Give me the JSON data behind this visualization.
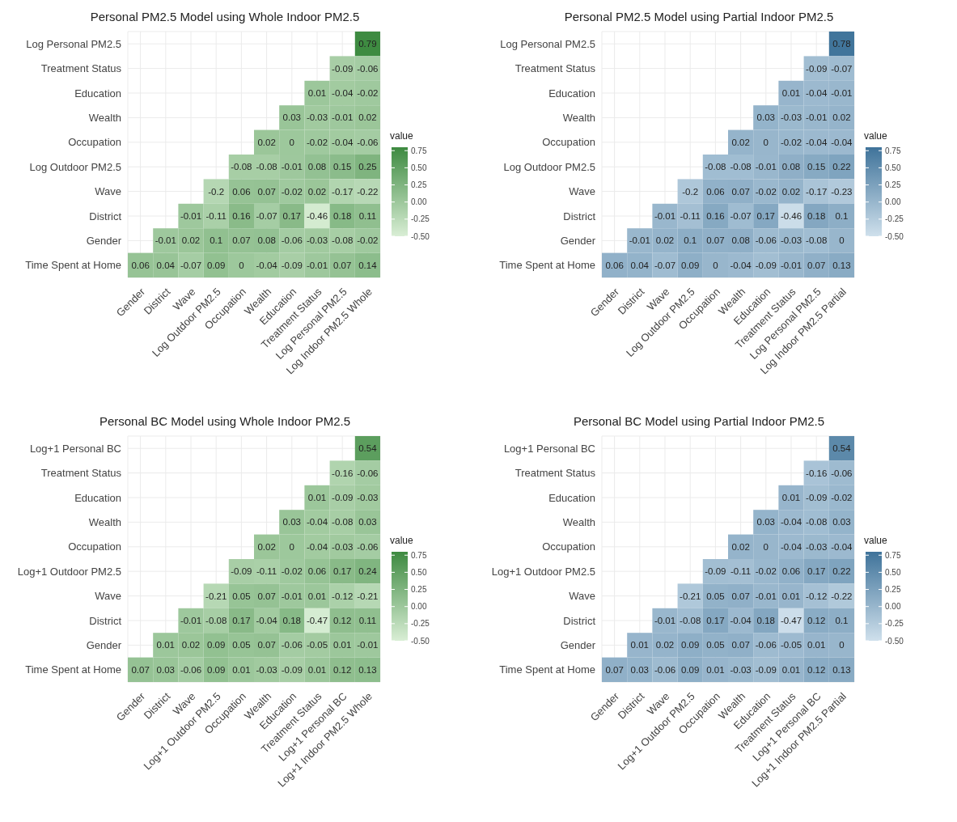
{
  "chart_data": [
    {
      "type": "heatmap",
      "title": "Personal PM2.5 Model using Whole Indoor PM2.5",
      "categories": [
        "Gender",
        "District",
        "Wave",
        "Log Outdoor PM2.5",
        "Occupation",
        "Wealth",
        "Education",
        "Treatment Status",
        "Log Personal PM2.5",
        "Log Indoor PM2.5 Whole"
      ],
      "y_categories": [
        "Log Personal PM2.5",
        "Treatment Status",
        "Education",
        "Wealth",
        "Occupation",
        "Log Outdoor PM2.5",
        "Wave",
        "District",
        "Gender",
        "Time Spent at Home"
      ],
      "cells": [
        [
          null,
          null,
          null,
          null,
          null,
          null,
          null,
          null,
          null,
          0.79
        ],
        [
          null,
          null,
          null,
          null,
          null,
          null,
          null,
          null,
          -0.09,
          -0.06
        ],
        [
          null,
          null,
          null,
          null,
          null,
          null,
          null,
          0.01,
          -0.04,
          -0.02
        ],
        [
          null,
          null,
          null,
          null,
          null,
          null,
          0.03,
          -0.03,
          -0.01,
          0.02
        ],
        [
          null,
          null,
          null,
          null,
          null,
          0.02,
          0,
          -0.02,
          -0.04,
          -0.06
        ],
        [
          null,
          null,
          null,
          null,
          -0.08,
          -0.08,
          -0.01,
          0.08,
          0.15,
          0.25
        ],
        [
          null,
          null,
          null,
          -0.2,
          0.06,
          0.07,
          -0.02,
          0.02,
          -0.17,
          -0.22
        ],
        [
          null,
          null,
          -0.01,
          -0.11,
          0.16,
          -0.07,
          0.17,
          -0.46,
          0.18,
          0.11
        ],
        [
          null,
          -0.01,
          0.02,
          0.1,
          0.07,
          0.08,
          -0.06,
          -0.03,
          -0.08,
          -0.02
        ],
        [
          0.06,
          0.04,
          -0.07,
          0.09,
          0,
          -0.04,
          -0.09,
          -0.01,
          0.07,
          0.14
        ]
      ],
      "colors": [
        "#d9eed5",
        "#3d8a40"
      ],
      "clim": [
        -0.5,
        0.8
      ],
      "cticks": [
        {
          "value": -0.5,
          "label": "-0.50"
        },
        -0.25,
        {
          "value": 0,
          "label": "0.00"
        },
        0.25,
        {
          "value": 0.5,
          "label": "0.50"
        },
        0.75
      ],
      "clabel": "value",
      "data_labels": true,
      "grid": true
    },
    {
      "type": "heatmap",
      "title": "Personal PM2.5 Model using Partial Indoor PM2.5",
      "categories": [
        "Gender",
        "District",
        "Wave",
        "Log Outdoor PM2.5",
        "Occupation",
        "Wealth",
        "Education",
        "Treatment Status",
        "Log Personal PM2.5",
        "Log Indoor PM2.5 Partial"
      ],
      "y_categories": [
        "Log Personal PM2.5",
        "Treatment Status",
        "Education",
        "Wealth",
        "Occupation",
        "Log Outdoor PM2.5",
        "Wave",
        "District",
        "Gender",
        "Time Spent at Home"
      ],
      "cells": [
        [
          null,
          null,
          null,
          null,
          null,
          null,
          null,
          null,
          null,
          0.78
        ],
        [
          null,
          null,
          null,
          null,
          null,
          null,
          null,
          null,
          -0.09,
          -0.07
        ],
        [
          null,
          null,
          null,
          null,
          null,
          null,
          null,
          0.01,
          -0.04,
          -0.01
        ],
        [
          null,
          null,
          null,
          null,
          null,
          null,
          0.03,
          -0.03,
          -0.01,
          0.02
        ],
        [
          null,
          null,
          null,
          null,
          null,
          0.02,
          0,
          -0.02,
          -0.04,
          -0.04
        ],
        [
          null,
          null,
          null,
          null,
          -0.08,
          -0.08,
          -0.01,
          0.08,
          0.15,
          0.22
        ],
        [
          null,
          null,
          null,
          -0.2,
          0.06,
          0.07,
          -0.02,
          0.02,
          -0.17,
          -0.23
        ],
        [
          null,
          null,
          -0.01,
          -0.11,
          0.16,
          -0.07,
          0.17,
          -0.46,
          0.18,
          0.1
        ],
        [
          null,
          -0.01,
          0.02,
          0.1,
          0.07,
          0.08,
          -0.06,
          -0.03,
          -0.08,
          0
        ],
        [
          0.06,
          0.04,
          -0.07,
          0.09,
          0,
          -0.04,
          -0.09,
          -0.01,
          0.07,
          0.13
        ]
      ],
      "colors": [
        "#cfe0ec",
        "#3f739a"
      ],
      "clim": [
        -0.5,
        0.8
      ],
      "cticks": [
        {
          "value": -0.5,
          "label": "-0.50"
        },
        -0.25,
        {
          "value": 0,
          "label": "0.00"
        },
        0.25,
        {
          "value": 0.5,
          "label": "0.50"
        },
        0.75
      ],
      "clabel": "value",
      "data_labels": true,
      "grid": true
    },
    {
      "type": "heatmap",
      "title": "Personal BC Model using Whole Indoor PM2.5",
      "categories": [
        "Gender",
        "District",
        "Wave",
        "Log+1 Outdoor PM2.5",
        "Occupation",
        "Wealth",
        "Education",
        "Treatment Status",
        "Log+1 Personal BC",
        "Log+1 Indoor PM2.5 Whole"
      ],
      "y_categories": [
        "Log+1 Personal BC",
        "Treatment Status",
        "Education",
        "Wealth",
        "Occupation",
        "Log+1 Outdoor PM2.5",
        "Wave",
        "District",
        "Gender",
        "Time Spent at Home"
      ],
      "cells": [
        [
          null,
          null,
          null,
          null,
          null,
          null,
          null,
          null,
          null,
          0.54
        ],
        [
          null,
          null,
          null,
          null,
          null,
          null,
          null,
          null,
          -0.16,
          -0.06
        ],
        [
          null,
          null,
          null,
          null,
          null,
          null,
          null,
          0.01,
          -0.09,
          -0.03
        ],
        [
          null,
          null,
          null,
          null,
          null,
          null,
          0.03,
          -0.04,
          -0.08,
          0.03
        ],
        [
          null,
          null,
          null,
          null,
          null,
          0.02,
          0,
          -0.04,
          -0.03,
          -0.06
        ],
        [
          null,
          null,
          null,
          null,
          -0.09,
          -0.11,
          -0.02,
          0.06,
          0.17,
          0.24
        ],
        [
          null,
          null,
          null,
          -0.21,
          0.05,
          0.07,
          -0.01,
          0.01,
          -0.12,
          -0.21
        ],
        [
          null,
          null,
          -0.01,
          -0.08,
          0.17,
          -0.04,
          0.18,
          -0.47,
          0.12,
          0.11
        ],
        [
          null,
          0.01,
          0.02,
          0.09,
          0.05,
          0.07,
          -0.06,
          -0.05,
          0.01,
          -0.01
        ],
        [
          0.07,
          0.03,
          -0.06,
          0.09,
          0.01,
          -0.03,
          -0.09,
          0.01,
          0.12,
          0.13
        ]
      ],
      "colors": [
        "#d9eed5",
        "#3d8a40"
      ],
      "clim": [
        -0.5,
        0.8
      ],
      "cticks": [
        {
          "value": -0.5,
          "label": "-0.50"
        },
        -0.25,
        {
          "value": 0,
          "label": "0.00"
        },
        0.25,
        {
          "value": 0.5,
          "label": "0.50"
        },
        0.75
      ],
      "clabel": "value",
      "data_labels": true,
      "grid": true
    },
    {
      "type": "heatmap",
      "title": "Personal BC Model using Partial Indoor PM2.5",
      "categories": [
        "Gender",
        "District",
        "Wave",
        "Log+1 Outdoor PM2.5",
        "Occupation",
        "Wealth",
        "Education",
        "Treatment Status",
        "Log+1 Personal BC",
        "Log+1 Indoor PM2.5 Partial"
      ],
      "y_categories": [
        "Log+1 Personal BC",
        "Treatment Status",
        "Education",
        "Wealth",
        "Occupation",
        "Log+1 Outdoor PM2.5",
        "Wave",
        "District",
        "Gender",
        "Time Spent at Home"
      ],
      "cells": [
        [
          null,
          null,
          null,
          null,
          null,
          null,
          null,
          null,
          null,
          0.54
        ],
        [
          null,
          null,
          null,
          null,
          null,
          null,
          null,
          null,
          -0.16,
          -0.06
        ],
        [
          null,
          null,
          null,
          null,
          null,
          null,
          null,
          0.01,
          -0.09,
          -0.02
        ],
        [
          null,
          null,
          null,
          null,
          null,
          null,
          0.03,
          -0.04,
          -0.08,
          0.03
        ],
        [
          null,
          null,
          null,
          null,
          null,
          0.02,
          0,
          -0.04,
          -0.03,
          -0.04
        ],
        [
          null,
          null,
          null,
          null,
          -0.09,
          -0.11,
          -0.02,
          0.06,
          0.17,
          0.22
        ],
        [
          null,
          null,
          null,
          -0.21,
          0.05,
          0.07,
          -0.01,
          0.01,
          -0.12,
          -0.22
        ],
        [
          null,
          null,
          -0.01,
          -0.08,
          0.17,
          -0.04,
          0.18,
          -0.47,
          0.12,
          0.1
        ],
        [
          null,
          0.01,
          0.02,
          0.09,
          0.05,
          0.07,
          -0.06,
          -0.05,
          0.01,
          0
        ],
        [
          0.07,
          0.03,
          -0.06,
          0.09,
          0.01,
          -0.03,
          -0.09,
          0.01,
          0.12,
          0.13
        ]
      ],
      "colors": [
        "#cfe0ec",
        "#3f739a"
      ],
      "clim": [
        -0.5,
        0.8
      ],
      "cticks": [
        {
          "value": -0.5,
          "label": "-0.50"
        },
        -0.25,
        {
          "value": 0,
          "label": "0.00"
        },
        0.25,
        {
          "value": 0.5,
          "label": "0.50"
        },
        0.75
      ],
      "clabel": "value",
      "data_labels": true,
      "grid": true
    }
  ]
}
